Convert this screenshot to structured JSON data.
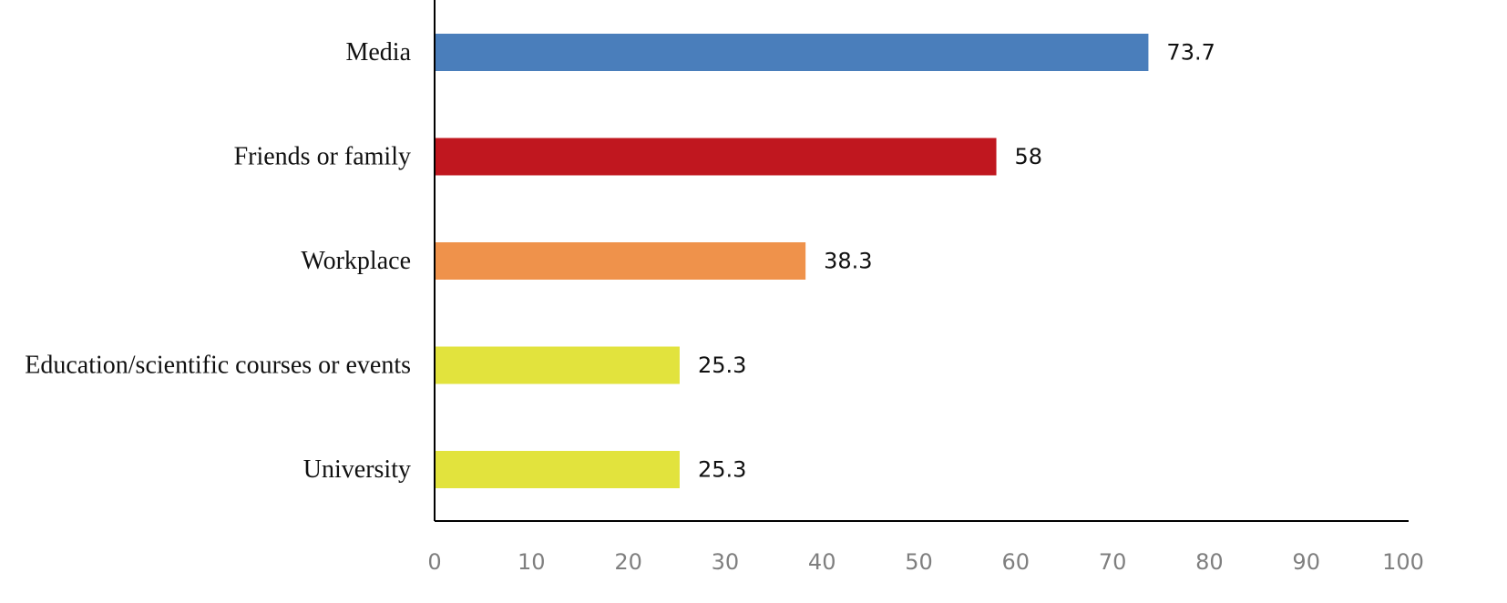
{
  "chart_data": {
    "type": "bar",
    "orientation": "horizontal",
    "title": "",
    "xlabel": "",
    "ylabel": "",
    "categories": [
      "Media",
      "Friends or family",
      "Workplace",
      "Education/scientific courses or events",
      "University"
    ],
    "values": [
      73.7,
      58,
      38.3,
      25.3,
      25.3
    ],
    "value_labels": [
      "73.7",
      "58",
      "38.3",
      "25.3",
      "25.3"
    ],
    "bar_colors": [
      "#4a7ebb",
      "#c0171f",
      "#ef924b",
      "#e2e33d",
      "#e2e33d"
    ],
    "xlim": [
      0,
      100
    ],
    "x_ticks": [
      "0",
      "10",
      "20",
      "30",
      "40",
      "50",
      "60",
      "70",
      "80",
      "90",
      "100"
    ],
    "grid": false,
    "legend": "none"
  },
  "colors": {
    "axis": "#000000",
    "tick_text": "#7f7f7f",
    "label_text": "#111111"
  }
}
